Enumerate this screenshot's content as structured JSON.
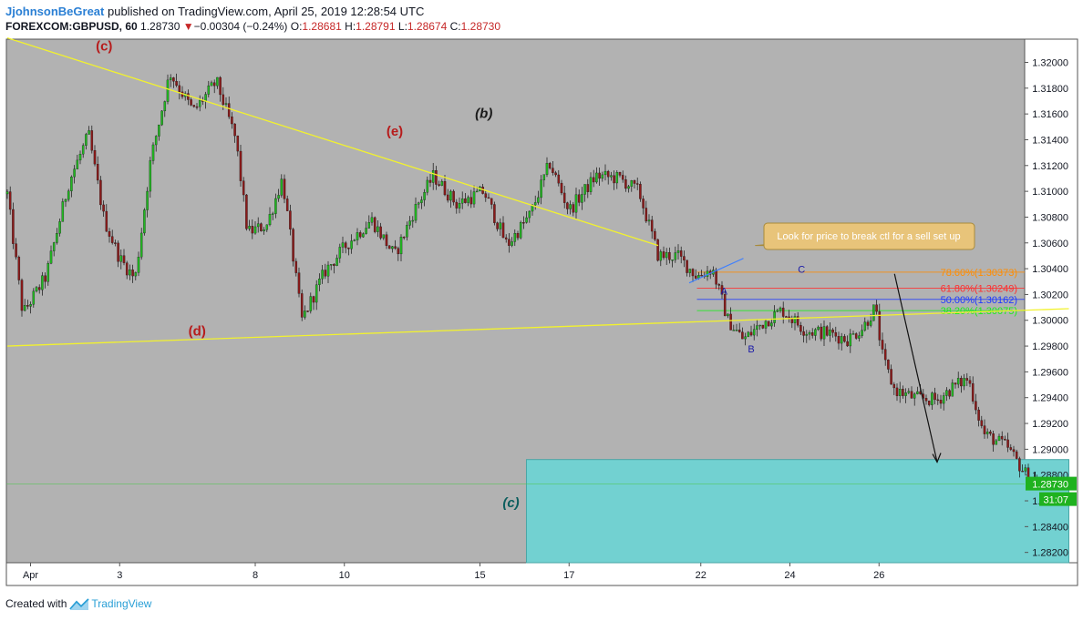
{
  "header": {
    "author": "JjohnsonBeGreat",
    "published_text": "published on TradingView.com, April 25, 2019 12:28:54 UTC",
    "symbol": "FOREXCOM:GBPUSD, 60",
    "last": "1.28730",
    "change_arrow": "▼",
    "change": "−0.00304 (−0.24%)",
    "o_label": "O:",
    "o_value": "1.28681",
    "h_label": "H:",
    "h_value": "1.28791",
    "l_label": "L:",
    "l_value": "1.28674",
    "c_label": "C:",
    "c_value": "1.28730"
  },
  "footer": {
    "created_with": "Created with",
    "brand": "TradingView"
  },
  "colors": {
    "plot_bg": "#b2b2b2",
    "up": "#22b722",
    "down": "#8b1a1a",
    "trend": "#f2f22e",
    "target_box": "#72d1d1"
  },
  "chart_data": {
    "type": "candlestick",
    "symbol": "GBPUSD",
    "timeframe": "60",
    "ylim": [
      1.2812,
      1.3218
    ],
    "y_ticks": [
      "1.32000",
      "1.31800",
      "1.31600",
      "1.31400",
      "1.31200",
      "1.31000",
      "1.30800",
      "1.30600",
      "1.30400",
      "1.30200",
      "1.30000",
      "1.29800",
      "1.29600",
      "1.29400",
      "1.29200",
      "1.29000",
      "1.28800",
      "1.28600",
      "1.28400",
      "1.28200"
    ],
    "x_ticks": [
      "Apr",
      "3",
      "8",
      "10",
      "15",
      "17",
      "22",
      "24",
      "26"
    ],
    "last_price_label": "1.28730",
    "countdown_label": "31:07",
    "price_path": [
      {
        "x": 0.0,
        "p": 1.3098
      },
      {
        "x": 0.4,
        "p": 1.3005
      },
      {
        "x": 1.0,
        "p": 1.3034
      },
      {
        "x": 1.6,
        "p": 1.3108
      },
      {
        "x": 2.1,
        "p": 1.3144
      },
      {
        "x": 2.5,
        "p": 1.3078
      },
      {
        "x": 2.9,
        "p": 1.3048
      },
      {
        "x": 3.3,
        "p": 1.3032
      },
      {
        "x": 3.7,
        "p": 1.3124
      },
      {
        "x": 4.2,
        "p": 1.3192
      },
      {
        "x": 4.8,
        "p": 1.3162
      },
      {
        "x": 5.4,
        "p": 1.3185
      },
      {
        "x": 5.9,
        "p": 1.314
      },
      {
        "x": 6.2,
        "p": 1.3068
      },
      {
        "x": 6.7,
        "p": 1.3074
      },
      {
        "x": 7.1,
        "p": 1.311
      },
      {
        "x": 7.6,
        "p": 1.3
      },
      {
        "x": 8.2,
        "p": 1.3038
      },
      {
        "x": 8.8,
        "p": 1.306
      },
      {
        "x": 9.4,
        "p": 1.3078
      },
      {
        "x": 10.0,
        "p": 1.305
      },
      {
        "x": 10.5,
        "p": 1.3085
      },
      {
        "x": 11.0,
        "p": 1.3112
      },
      {
        "x": 11.6,
        "p": 1.309
      },
      {
        "x": 12.3,
        "p": 1.31
      },
      {
        "x": 12.9,
        "p": 1.3058
      },
      {
        "x": 13.5,
        "p": 1.3082
      },
      {
        "x": 14.0,
        "p": 1.3122
      },
      {
        "x": 14.5,
        "p": 1.3085
      },
      {
        "x": 15.2,
        "p": 1.3112
      },
      {
        "x": 15.8,
        "p": 1.311
      },
      {
        "x": 16.3,
        "p": 1.31
      },
      {
        "x": 16.8,
        "p": 1.305
      },
      {
        "x": 17.3,
        "p": 1.305
      },
      {
        "x": 17.8,
        "p": 1.3034
      },
      {
        "x": 18.2,
        "p": 1.304
      },
      {
        "x": 18.6,
        "p": 1.3
      },
      {
        "x": 19.0,
        "p": 1.2985
      },
      {
        "x": 19.5,
        "p": 1.2998
      },
      {
        "x": 20.0,
        "p": 1.3008
      },
      {
        "x": 20.6,
        "p": 1.2992
      },
      {
        "x": 21.2,
        "p": 1.299
      },
      {
        "x": 21.7,
        "p": 1.2985
      },
      {
        "x": 22.1,
        "p": 1.2995
      },
      {
        "x": 22.4,
        "p": 1.301
      },
      {
        "x": 22.6,
        "p": 1.297
      },
      {
        "x": 22.9,
        "p": 1.2946
      },
      {
        "x": 23.4,
        "p": 1.294
      },
      {
        "x": 24.0,
        "p": 1.2938
      },
      {
        "x": 24.4,
        "p": 1.2948
      },
      {
        "x": 24.8,
        "p": 1.2955
      },
      {
        "x": 25.2,
        "p": 1.2912
      },
      {
        "x": 25.8,
        "p": 1.2902
      },
      {
        "x": 26.3,
        "p": 1.288
      },
      {
        "x": 26.6,
        "p": 1.2873
      }
    ],
    "drawings": {
      "upper_trendline": {
        "from": {
          "x": 0.0,
          "p": 1.3219
        },
        "to": {
          "x": 16.8,
          "p": 1.3058
        }
      },
      "lower_trendline": {
        "from": {
          "x": 0.0,
          "p": 1.298
        },
        "to": {
          "x": 27.4,
          "p": 1.3009
        }
      },
      "blue_line": {
        "from": {
          "x": 17.6,
          "p": 1.3029
        },
        "to": {
          "x": 19.0,
          "p": 1.3048
        }
      },
      "callout_pointer": {
        "from": {
          "x": 19.3,
          "p": 1.3058
        },
        "to": {
          "x": 22.7,
          "p": 1.3062
        }
      },
      "arrow": {
        "from": {
          "x": 22.9,
          "p": 1.3036
        },
        "to": {
          "x": 24.0,
          "p": 1.289
        }
      },
      "target_box": {
        "x0": 13.4,
        "x1": 27.4,
        "p_top": 1.2892,
        "p_bottom": 1.2812
      },
      "last_price_line": 1.2873
    },
    "fib_levels": [
      {
        "label": "78.60%(1.30373)",
        "price": 1.30373,
        "color": "#ff8c00"
      },
      {
        "label": "61.80%(1.30249)",
        "price": 1.30249,
        "color": "#ff2e2e"
      },
      {
        "label": "50.00%(1.30162)",
        "price": 1.30162,
        "color": "#1f39ff"
      },
      {
        "label": "38.20%(1.30075)",
        "price": 1.30075,
        "color": "#18ee18"
      }
    ],
    "wave_labels": [
      {
        "text": "(c)",
        "x": 2.5,
        "p": 1.3209,
        "color": "#b71c1c",
        "italic": false
      },
      {
        "text": "(e)",
        "x": 10.0,
        "p": 1.3143,
        "color": "#b71c1c",
        "italic": false
      },
      {
        "text": "(b)",
        "x": 12.3,
        "p": 1.3157,
        "color": "#1a1a1a",
        "italic": true
      },
      {
        "text": "(d)",
        "x": 4.9,
        "p": 1.2988,
        "color": "#b71c1c",
        "italic": false
      },
      {
        "text": "A",
        "x": 18.5,
        "p": 1.302,
        "color": "#1a1aa8",
        "italic": false
      },
      {
        "text": "B",
        "x": 19.2,
        "p": 1.2975,
        "color": "#1a1aa8",
        "italic": false
      },
      {
        "text": "C",
        "x": 20.5,
        "p": 1.3037,
        "color": "#1a1aa8",
        "italic": false
      },
      {
        "text": "(c)",
        "x": 13.0,
        "p": 1.2855,
        "color": "#0b5e5e",
        "italic": true
      }
    ],
    "callout_text": "Look for price to break ctl for a sell set up"
  }
}
